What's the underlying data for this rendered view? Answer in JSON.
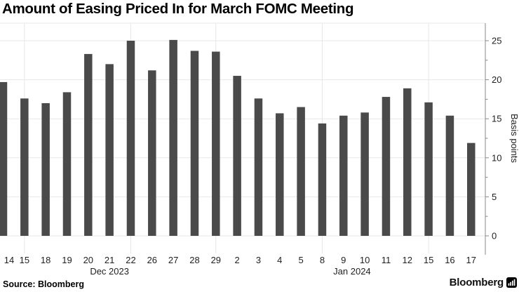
{
  "chart_data": {
    "type": "bar",
    "title": "Amount of Easing Priced In for March FOMC Meeting",
    "categories": [
      "14",
      "15",
      "18",
      "19",
      "20",
      "21",
      "22",
      "26",
      "27",
      "28",
      "29",
      "2",
      "3",
      "4",
      "5",
      "8",
      "9",
      "10",
      "11",
      "12",
      "15",
      "16",
      "17"
    ],
    "values": [
      19.7,
      17.6,
      17.0,
      18.4,
      23.3,
      22.0,
      25.0,
      21.2,
      25.1,
      23.7,
      23.6,
      20.5,
      17.6,
      15.7,
      16.5,
      14.4,
      15.4,
      15.8,
      17.8,
      18.9,
      17.1,
      15.4,
      11.9
    ],
    "month_labels": [
      {
        "text": "Dec 2023",
        "anchor_index": 5
      },
      {
        "text": "Jan 2024",
        "anchor_index": 16.4
      }
    ],
    "xlabel": "",
    "ylabel": "Basis points",
    "y_ticks": [
      0,
      5,
      10,
      15,
      20,
      25
    ],
    "y_minor_ticks": [
      2.5,
      7.5,
      12.5,
      17.5,
      22.5
    ],
    "ylim": [
      0,
      25
    ],
    "grid": "on",
    "legend": "none",
    "axis_side": "right",
    "vertical_gridline_indices": [
      1,
      6,
      10,
      15,
      20
    ],
    "colors": {
      "bar": "#4a4a4a",
      "grid": "#e7e7e7",
      "axis": "#8a8a8a",
      "tick_label": "#1f1f1f",
      "title": "#000000"
    }
  },
  "footer": {
    "source": "Source: Bloomberg",
    "brand": "Bloomberg"
  }
}
